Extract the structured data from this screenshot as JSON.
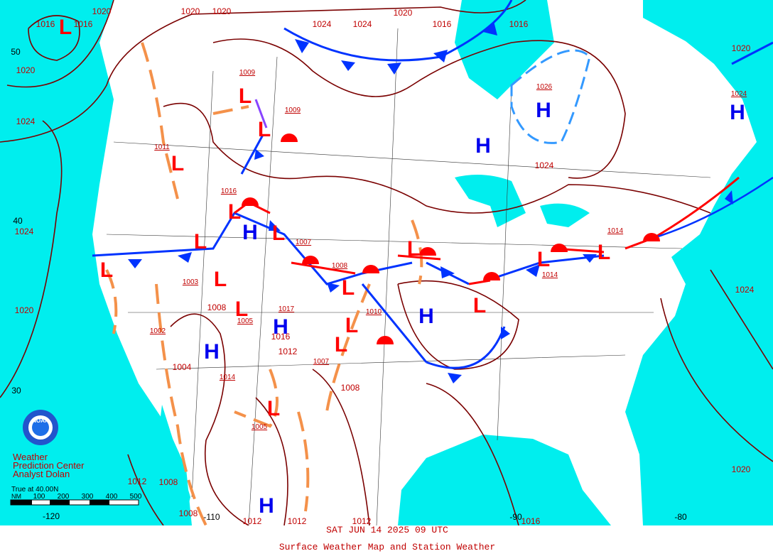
{
  "footer": {
    "title": "SAT JUN 14 2025 09 UTC",
    "subtitle": "Surface Weather Map and Station Weather"
  },
  "credit": [
    "Weather",
    "Prediction Center",
    "Analyst Dolan"
  ],
  "logo": "NOAA",
  "scale": {
    "caption": "True at 40.00N",
    "units": "NM",
    "ticks": [
      "100",
      "200",
      "300",
      "400",
      "500"
    ]
  },
  "latitude_labels": [
    "50",
    "40",
    "30"
  ],
  "longitude_labels": [
    "-120",
    "-110",
    "-90",
    "-80"
  ],
  "lows": [
    "L",
    "L",
    "L",
    "L",
    "L",
    "L",
    "L",
    "L",
    "L",
    "L",
    "L",
    "L",
    "L",
    "L",
    "L",
    "L",
    "L",
    "L"
  ],
  "highs": [
    "H",
    "H",
    "H",
    "H",
    "H",
    "H",
    "H",
    "H"
  ],
  "isobar_labels": [
    "1020",
    "1020",
    "1020",
    "1024",
    "1024",
    "1020",
    "1016",
    "1016",
    "1020",
    "1016",
    "1016",
    "1020",
    "1024",
    "1024",
    "1020",
    "1024",
    "1024",
    "1012",
    "1008",
    "1008",
    "1012",
    "1012",
    "1012",
    "1016",
    "1020",
    "1008",
    "1008",
    "1012",
    "1016",
    "1004"
  ],
  "center_pressures": [
    "1009",
    "1009",
    "1026",
    "1024",
    "1011",
    "1016",
    "1007",
    "1003",
    "1017",
    "1005",
    "1008",
    "1010",
    "1007",
    "1014",
    "1005",
    "1014",
    "1014",
    "1002"
  ]
}
